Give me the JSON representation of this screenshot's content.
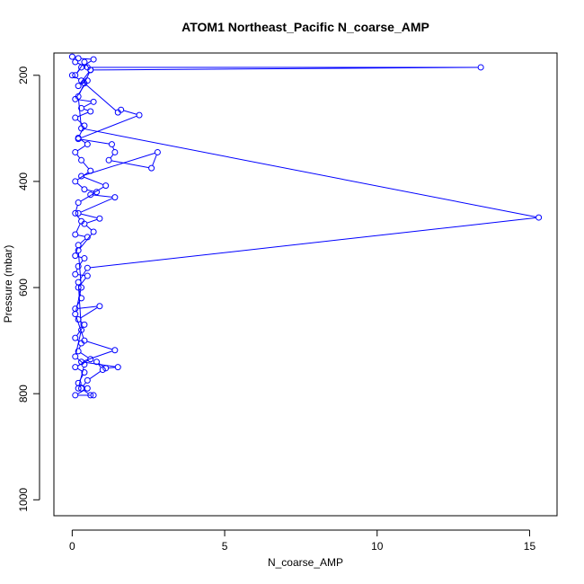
{
  "chart_data": {
    "type": "line",
    "title": "ATOM1 Northeast_Pacific N_coarse_AMP",
    "xlabel": "N_coarse_AMP",
    "ylabel": "Pressure (mbar)",
    "xlim": [
      -0.6,
      15.9
    ],
    "ylim": [
      1030,
      158
    ],
    "y_reversed": true,
    "x_ticks": [
      0,
      5,
      10,
      15
    ],
    "y_ticks": [
      200,
      400,
      600,
      800,
      1000
    ],
    "grid": false,
    "legend": "none",
    "marker": "open-circle",
    "series_color": "#0000ff",
    "series": [
      {
        "points": [
          [
            0.0,
            165
          ],
          [
            0.2,
            168
          ],
          [
            0.7,
            170
          ],
          [
            0.3,
            185
          ],
          [
            0.1,
            200
          ],
          [
            0.4,
            175
          ],
          [
            0.6,
            190
          ],
          [
            0.2,
            220
          ],
          [
            0.5,
            210
          ],
          [
            0.1,
            245
          ],
          [
            0.7,
            250
          ],
          [
            0.3,
            262
          ],
          [
            0.6,
            268
          ],
          [
            0.1,
            280
          ],
          [
            0.4,
            295
          ],
          [
            0.2,
            318
          ],
          [
            0.5,
            330
          ],
          [
            0.1,
            345
          ],
          [
            0.3,
            360
          ],
          [
            0.6,
            380
          ],
          [
            0.1,
            400
          ],
          [
            0.4,
            415
          ],
          [
            0.8,
            420
          ],
          [
            0.2,
            440
          ],
          [
            0.1,
            460
          ],
          [
            0.3,
            475
          ],
          [
            0.1,
            500
          ],
          [
            0.5,
            505
          ],
          [
            0.2,
            520
          ],
          [
            0.1,
            540
          ],
          [
            0.4,
            545
          ],
          [
            0.2,
            560
          ],
          [
            0.1,
            575
          ],
          [
            0.5,
            578
          ],
          [
            0.2,
            600
          ],
          [
            0.3,
            620
          ],
          [
            0.1,
            640
          ],
          [
            0.9,
            635
          ],
          [
            0.2,
            660
          ],
          [
            0.4,
            670
          ],
          [
            0.1,
            695
          ],
          [
            0.3,
            705
          ],
          [
            0.2,
            720
          ],
          [
            0.6,
            735
          ],
          [
            0.1,
            750
          ],
          [
            0.4,
            760
          ],
          [
            0.2,
            780
          ],
          [
            0.5,
            790
          ],
          [
            0.1,
            803
          ],
          [
            0.7,
            803
          ]
        ]
      },
      {
        "points": [
          [
            0.0,
            200
          ],
          [
            0.3,
            210
          ],
          [
            1.5,
            270
          ],
          [
            1.6,
            265
          ],
          [
            2.2,
            275
          ],
          [
            0.2,
            320
          ],
          [
            1.3,
            330
          ],
          [
            1.4,
            345
          ],
          [
            1.2,
            360
          ],
          [
            2.6,
            375
          ],
          [
            2.8,
            345
          ],
          [
            0.3,
            390
          ],
          [
            1.1,
            408
          ],
          [
            0.6,
            425
          ],
          [
            1.4,
            430
          ],
          [
            0.2,
            460
          ],
          [
            0.9,
            470
          ],
          [
            0.4,
            480
          ],
          [
            0.7,
            495
          ],
          [
            0.2,
            530
          ],
          [
            0.3,
            600
          ],
          [
            0.1,
            650
          ],
          [
            0.4,
            700
          ],
          [
            1.4,
            718
          ],
          [
            0.3,
            740
          ],
          [
            1.5,
            750
          ],
          [
            1.1,
            752
          ],
          [
            0.8,
            740
          ],
          [
            1.0,
            755
          ],
          [
            0.5,
            775
          ],
          [
            0.3,
            790
          ],
          [
            0.6,
            803
          ]
        ]
      },
      {
        "points": [
          [
            0.1,
            175
          ],
          [
            0.5,
            185
          ],
          [
            13.4,
            185
          ],
          [
            0.6,
            190
          ],
          [
            0.4,
            215
          ],
          [
            0.2,
            240
          ],
          [
            0.3,
            300
          ],
          [
            15.3,
            468
          ],
          [
            0.5,
            563
          ],
          [
            0.2,
            590
          ],
          [
            0.3,
            680
          ],
          [
            0.1,
            730
          ],
          [
            0.4,
            745
          ],
          [
            0.2,
            790
          ]
        ]
      }
    ]
  }
}
